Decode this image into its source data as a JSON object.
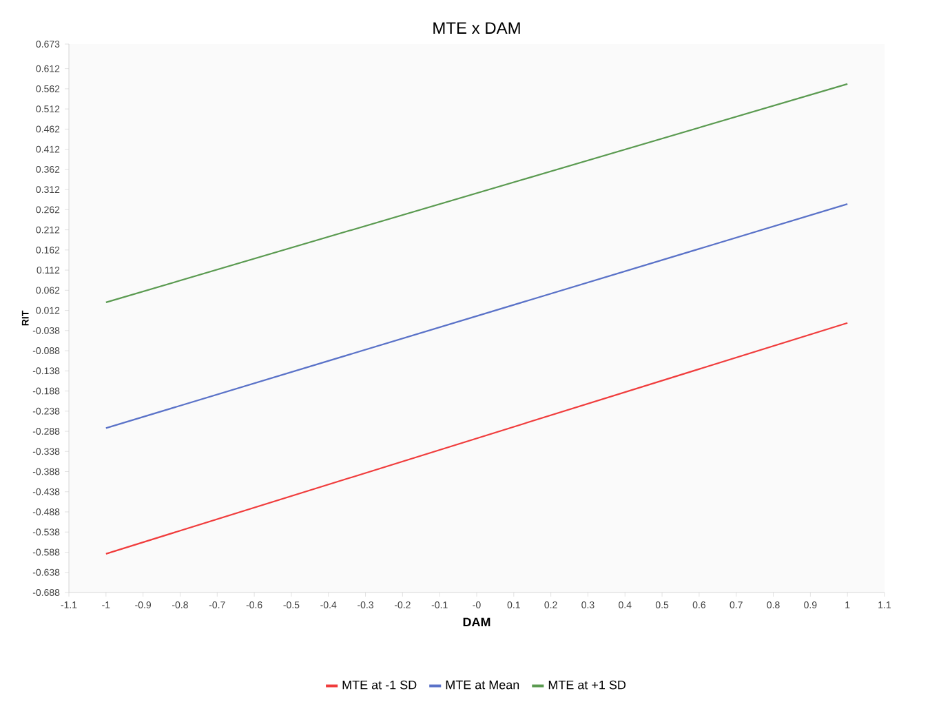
{
  "chart_data": {
    "type": "line",
    "title": "MTE x DAM",
    "xlabel": "DAM",
    "ylabel": "RIT",
    "x": [
      -1,
      1
    ],
    "series": [
      {
        "name": "MTE at -1 SD",
        "color": "#f03c3c",
        "values": [
          -0.592,
          -0.019
        ]
      },
      {
        "name": "MTE at Mean",
        "color": "#5a72c8",
        "values": [
          -0.28,
          0.276
        ]
      },
      {
        "name": "MTE at +1 SD",
        "color": "#5a9a50",
        "values": [
          0.032,
          0.574
        ]
      }
    ],
    "xlim": [
      -1.1,
      1.1
    ],
    "xticks": [
      -1.1,
      -1,
      -0.9,
      -0.8,
      -0.7,
      -0.6,
      -0.5,
      -0.4,
      -0.3,
      -0.2,
      -0.1,
      {
        "value": 0,
        "label": "-0"
      },
      0.1,
      0.2,
      0.3,
      0.4,
      0.5,
      0.6,
      0.7,
      0.8,
      0.9,
      1,
      1.1
    ],
    "ylim": [
      -0.688,
      0.673
    ],
    "yticks": [
      -0.688,
      -0.638,
      -0.588,
      -0.538,
      -0.488,
      -0.438,
      -0.388,
      -0.338,
      -0.288,
      -0.238,
      -0.188,
      -0.138,
      -0.088,
      -0.038,
      0.012,
      0.062,
      0.112,
      0.162,
      0.212,
      0.262,
      0.312,
      0.362,
      0.412,
      0.462,
      0.512,
      0.562,
      0.612,
      0.673
    ],
    "grid": false,
    "legend": "bottom",
    "marker": "none",
    "line_style": "solid"
  }
}
